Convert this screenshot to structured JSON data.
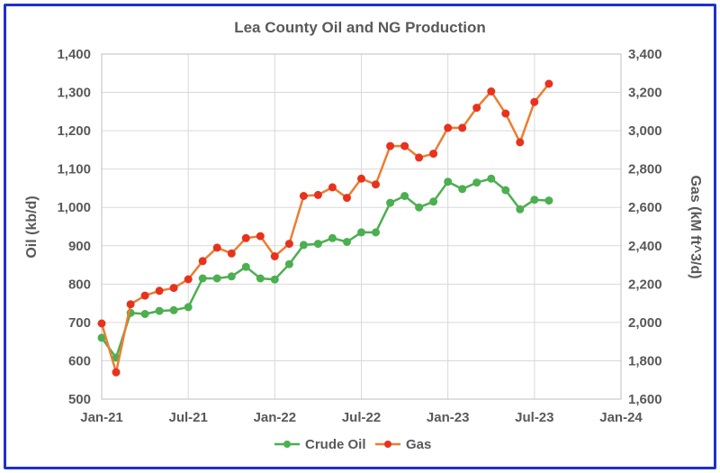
{
  "chart_data": {
    "type": "line",
    "title": "Lea County Oil and NG Production",
    "ylabel": "Oil (kb/d)",
    "y2label": "Gas (kM ft^3/d)",
    "ylim": [
      500,
      1400
    ],
    "y2lim": [
      1600,
      3400
    ],
    "y_ticks": [
      "500",
      "600",
      "700",
      "800",
      "900",
      "1,000",
      "1,100",
      "1,200",
      "1,300",
      "1,400"
    ],
    "y2_ticks": [
      "1,600",
      "1,800",
      "2,000",
      "2,200",
      "2,400",
      "2,600",
      "2,800",
      "3,000",
      "3,200",
      "3,400"
    ],
    "x_ticks": [
      "Jan-21",
      "Jul-21",
      "Jan-22",
      "Jul-22",
      "Jan-23",
      "Jul-23",
      "Jan-24"
    ],
    "x_range": [
      "2021-01",
      "2024-01"
    ],
    "x": [
      "2021-01",
      "2021-02",
      "2021-03",
      "2021-04",
      "2021-05",
      "2021-06",
      "2021-07",
      "2021-08",
      "2021-09",
      "2021-10",
      "2021-11",
      "2021-12",
      "2022-01",
      "2022-02",
      "2022-03",
      "2022-04",
      "2022-05",
      "2022-06",
      "2022-07",
      "2022-08",
      "2022-09",
      "2022-10",
      "2022-11",
      "2022-12",
      "2023-01",
      "2023-02",
      "2023-03",
      "2023-04",
      "2023-05",
      "2023-06",
      "2023-07",
      "2023-08"
    ],
    "grid": true,
    "legend_position": "bottom",
    "series": [
      {
        "name": "Crude Oil",
        "axis": "left",
        "color": "#4caf50",
        "marker_color": "#4caf50",
        "values": [
          660,
          608,
          725,
          722,
          730,
          732,
          740,
          815,
          815,
          820,
          845,
          815,
          812,
          852,
          902,
          905,
          920,
          910,
          935,
          935,
          1012,
          1030,
          1000,
          1015,
          1067,
          1048,
          1065,
          1075,
          1045,
          995,
          1020,
          1018
        ]
      },
      {
        "name": "Gas",
        "axis": "right",
        "color": "#ed7d31",
        "marker_color": "#e8321e",
        "values": [
          1995,
          1740,
          2095,
          2140,
          2165,
          2180,
          2225,
          2320,
          2390,
          2360,
          2440,
          2450,
          2345,
          2410,
          2660,
          2665,
          2705,
          2650,
          2750,
          2720,
          2920,
          2920,
          2860,
          2880,
          3015,
          3015,
          3120,
          3205,
          3090,
          2940,
          3150,
          3245
        ]
      }
    ]
  }
}
